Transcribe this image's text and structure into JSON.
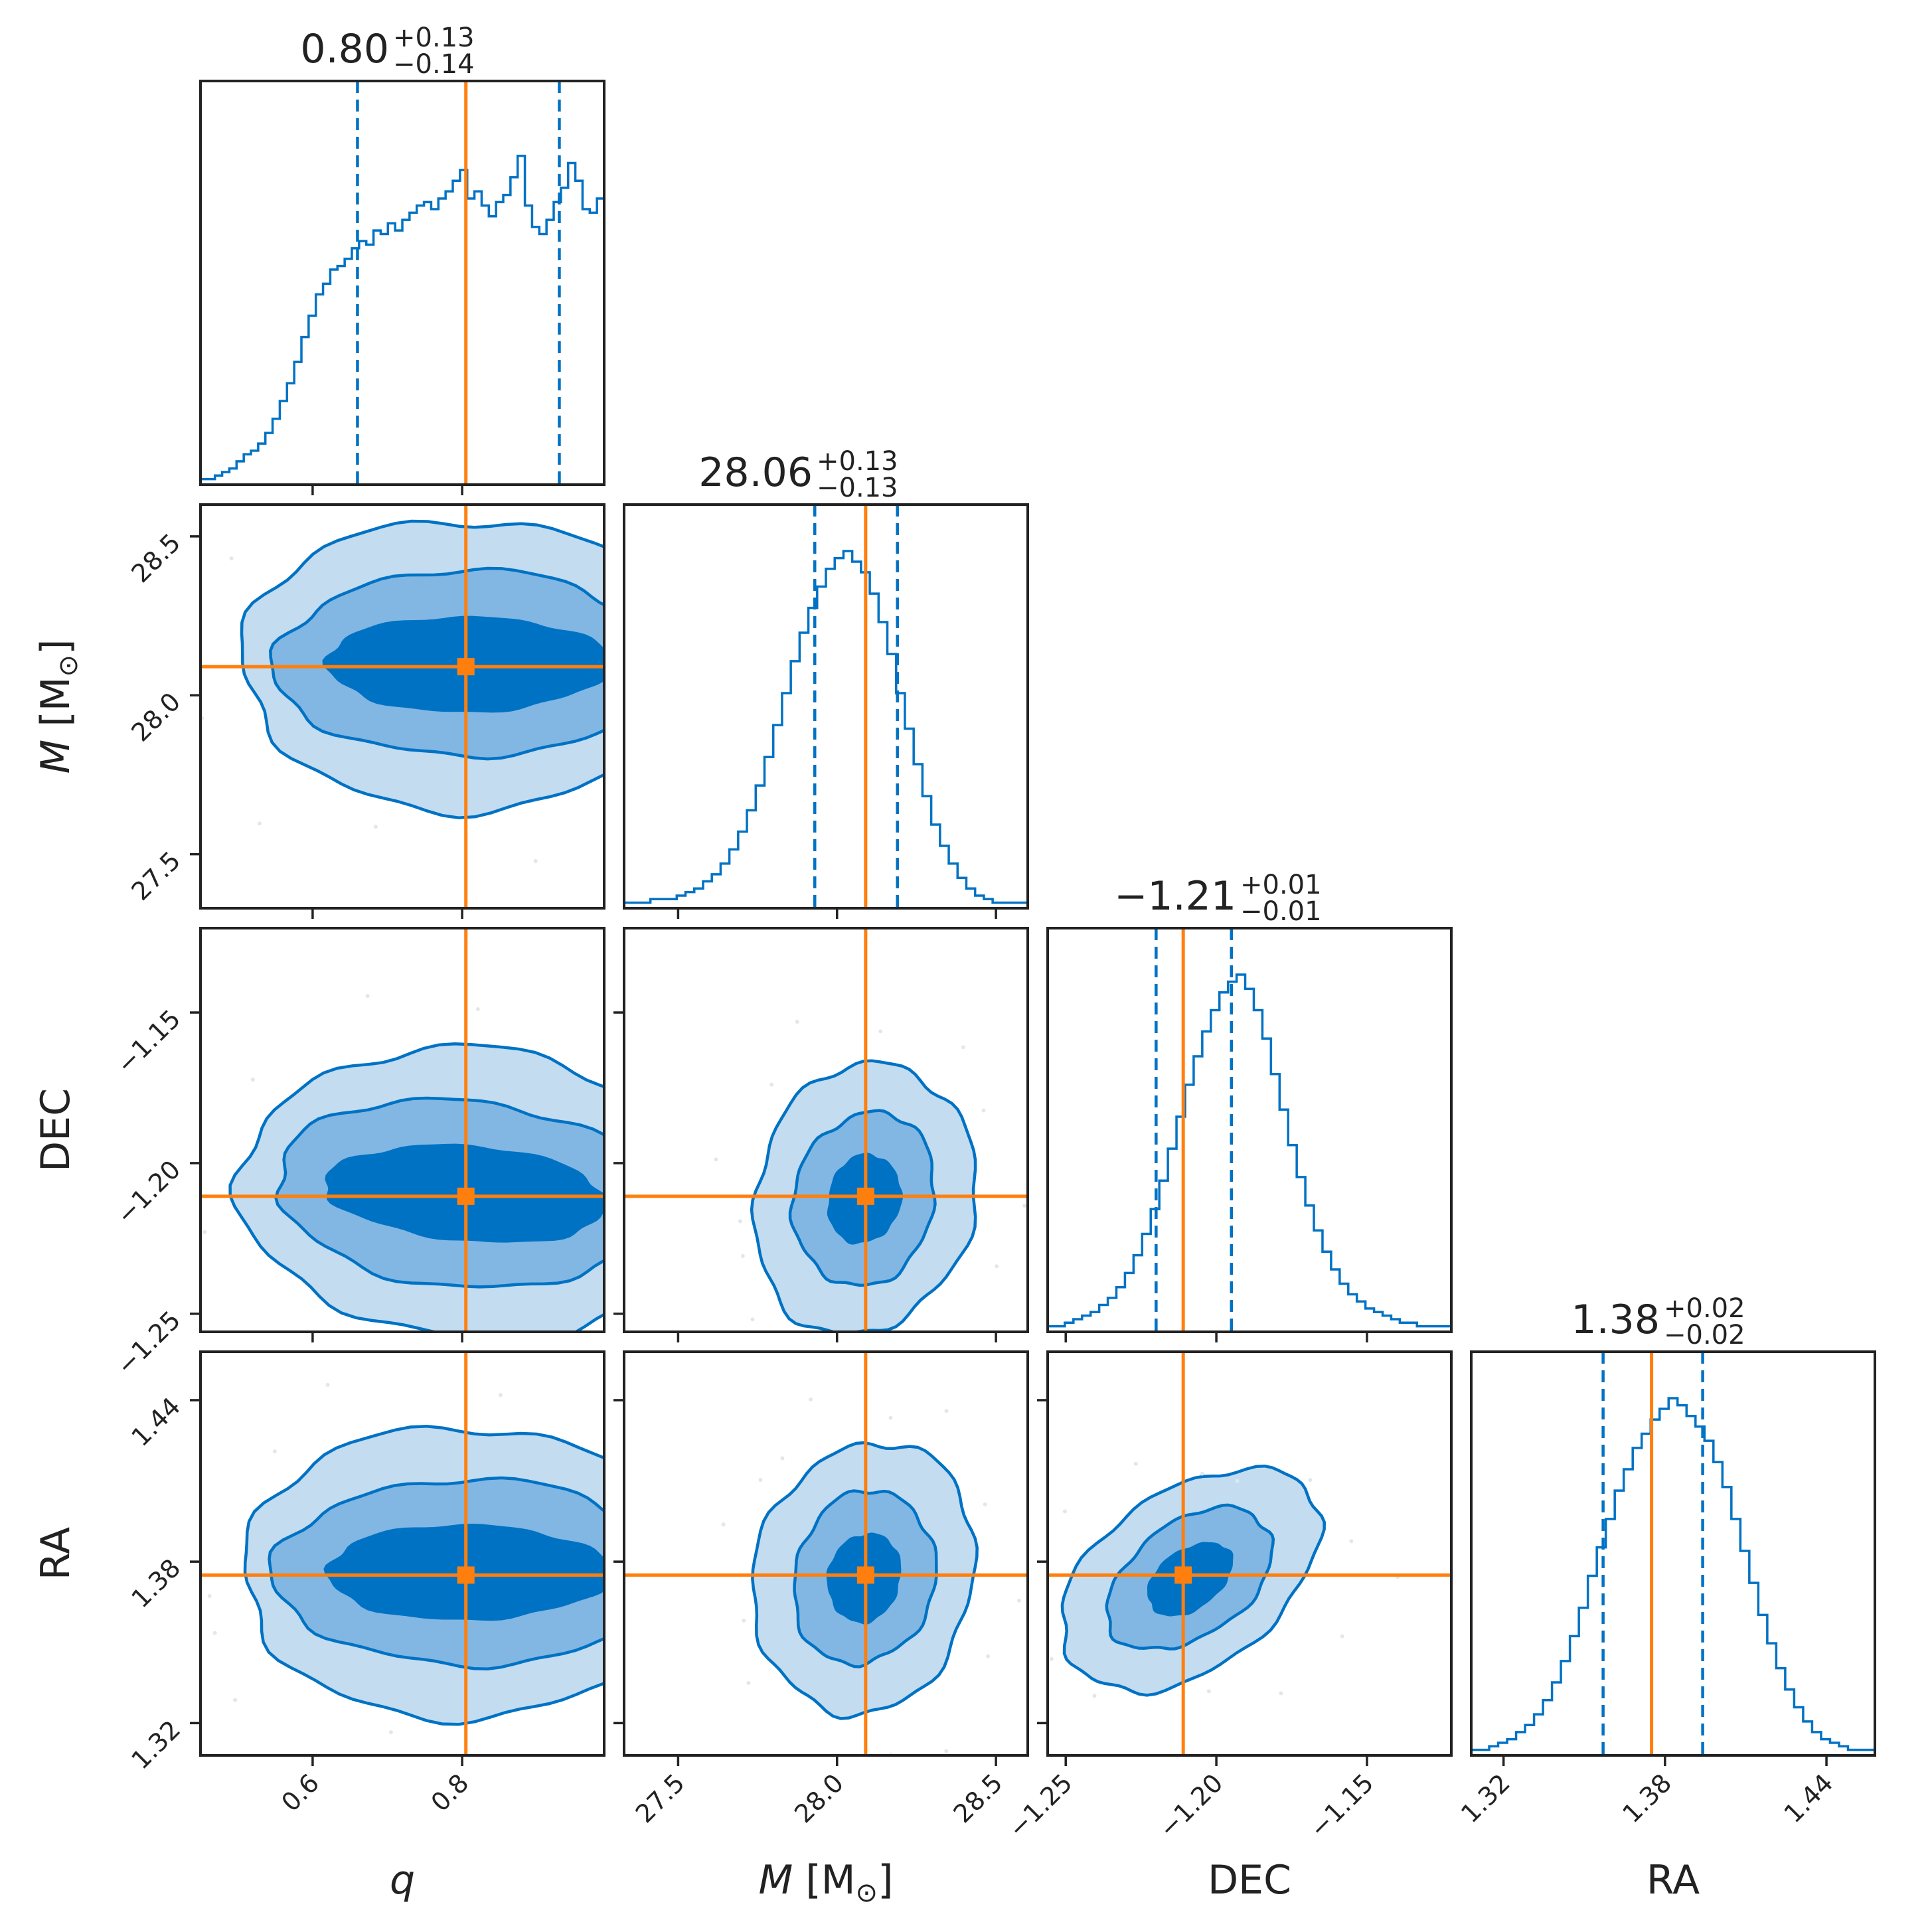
{
  "chart_data": {
    "type": "corner",
    "parameters": [
      {
        "key": "q",
        "label": "q",
        "label_italic": true,
        "range": [
          0.45,
          0.99
        ],
        "ticks": [
          0.6,
          0.8
        ],
        "tick_labels": [
          "0.6",
          "0.8"
        ],
        "truth": 0.805,
        "title": {
          "value": "0.80",
          "plus": "+0.13",
          "minus": "−0.14"
        },
        "quantiles": [
          0.66,
          0.93
        ],
        "median": 0.8
      },
      {
        "key": "M",
        "label_main": "M",
        "label_unit": "[M",
        "label_sub": "⊙",
        "label_close": "]",
        "range": [
          27.33,
          28.6
        ],
        "ticks": [
          27.5,
          28.0,
          28.5
        ],
        "tick_labels": [
          "27.5",
          "28.0",
          "28.5"
        ],
        "truth": 28.09,
        "title": {
          "value": "28.06",
          "plus": "+0.13",
          "minus": "−0.13"
        },
        "quantiles": [
          27.93,
          28.19
        ],
        "median": 28.06
      },
      {
        "key": "DEC",
        "label": "DEC",
        "label_italic": false,
        "range": [
          -1.256,
          -1.122
        ],
        "ticks": [
          -1.25,
          -1.2,
          -1.15
        ],
        "tick_labels": [
          "−1.25",
          "−1.20",
          "−1.15"
        ],
        "truth": -1.211,
        "title": {
          "value": "−1.21",
          "plus": "+0.01",
          "minus": "−0.01"
        },
        "quantiles": [
          -1.22,
          -1.195
        ],
        "median": -1.21
      },
      {
        "key": "RA",
        "label": "RA",
        "label_italic": false,
        "range": [
          1.308,
          1.458
        ],
        "ticks": [
          1.32,
          1.38,
          1.44
        ],
        "tick_labels": [
          "1.32",
          "1.38",
          "1.44"
        ],
        "truth": 1.375,
        "title": {
          "value": "1.38",
          "plus": "+0.02",
          "minus": "−0.02"
        },
        "quantiles": [
          1.357,
          1.394
        ],
        "median": 1.38
      }
    ],
    "histograms": {
      "q": [
        0.01,
        0.01,
        0.02,
        0.03,
        0.04,
        0.06,
        0.08,
        0.09,
        0.11,
        0.14,
        0.18,
        0.23,
        0.28,
        0.34,
        0.41,
        0.47,
        0.53,
        0.56,
        0.6,
        0.61,
        0.63,
        0.66,
        0.68,
        0.67,
        0.71,
        0.7,
        0.73,
        0.71,
        0.74,
        0.76,
        0.78,
        0.79,
        0.77,
        0.8,
        0.82,
        0.85,
        0.88,
        0.8,
        0.82,
        0.78,
        0.75,
        0.79,
        0.81,
        0.86,
        0.92,
        0.78,
        0.72,
        0.7,
        0.74,
        0.79,
        0.83,
        0.9,
        0.85,
        0.77,
        0.76,
        0.8
      ],
      "M": [
        0.01,
        0.01,
        0.01,
        0.02,
        0.02,
        0.02,
        0.03,
        0.04,
        0.05,
        0.07,
        0.09,
        0.12,
        0.16,
        0.21,
        0.27,
        0.34,
        0.42,
        0.51,
        0.6,
        0.69,
        0.77,
        0.84,
        0.9,
        0.95,
        0.98,
        1.0,
        0.97,
        0.94,
        0.88,
        0.8,
        0.71,
        0.6,
        0.5,
        0.4,
        0.31,
        0.23,
        0.17,
        0.12,
        0.08,
        0.05,
        0.03,
        0.02,
        0.01,
        0.01,
        0.01,
        0.01
      ],
      "DEC": [
        0.01,
        0.01,
        0.02,
        0.03,
        0.04,
        0.05,
        0.07,
        0.09,
        0.12,
        0.16,
        0.21,
        0.27,
        0.34,
        0.42,
        0.51,
        0.6,
        0.69,
        0.77,
        0.84,
        0.9,
        0.95,
        0.98,
        1.0,
        0.96,
        0.9,
        0.82,
        0.72,
        0.62,
        0.52,
        0.43,
        0.35,
        0.28,
        0.22,
        0.17,
        0.13,
        0.1,
        0.08,
        0.06,
        0.05,
        0.04,
        0.03,
        0.02,
        0.02,
        0.01,
        0.01,
        0.01,
        0.01
      ],
      "RA": [
        0.01,
        0.01,
        0.02,
        0.03,
        0.04,
        0.06,
        0.08,
        0.11,
        0.15,
        0.2,
        0.26,
        0.33,
        0.41,
        0.5,
        0.58,
        0.66,
        0.74,
        0.8,
        0.86,
        0.9,
        0.94,
        0.97,
        1.0,
        0.98,
        0.95,
        0.92,
        0.88,
        0.82,
        0.75,
        0.66,
        0.57,
        0.48,
        0.39,
        0.31,
        0.24,
        0.18,
        0.13,
        0.09,
        0.06,
        0.04,
        0.03,
        0.02,
        0.01,
        0.01,
        0.01
      ]
    },
    "contour_levels": [
      "outer",
      "middle",
      "inner"
    ],
    "grid": false,
    "legend": "none"
  },
  "colors": {
    "posterior": "#0072C4",
    "truth": "#ff7f0e",
    "outer_fill": "#c3dcf0",
    "middle_fill": "#81b7e2",
    "inner_fill": "#0072C4"
  }
}
